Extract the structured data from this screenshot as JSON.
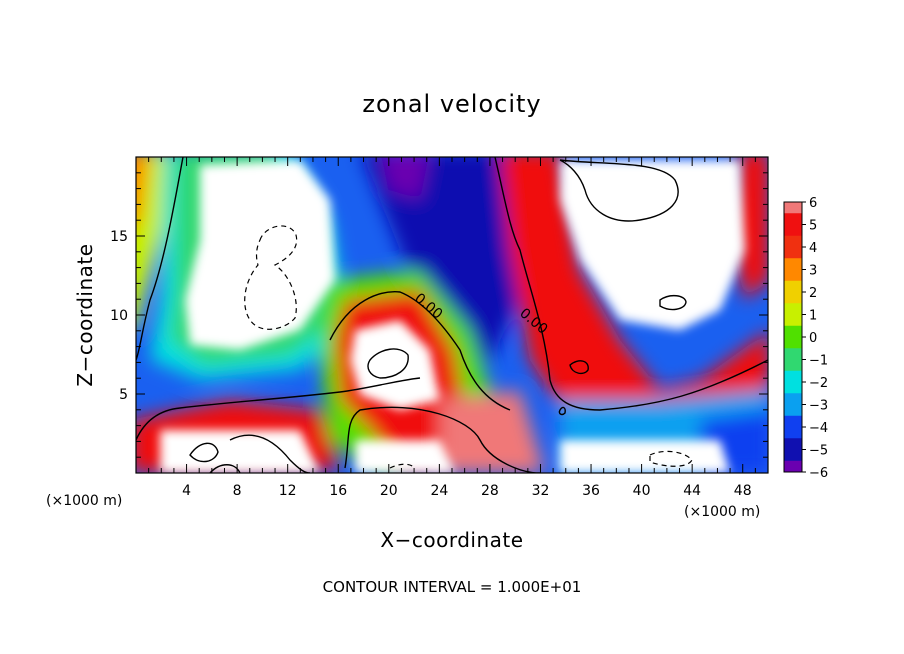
{
  "chart_data": {
    "type": "heatmap",
    "title": "zonal velocity",
    "xlabel": "X−coordinate",
    "ylabel": "Z−coordinate",
    "x_unit": "(×1000 m)",
    "z_unit": "(×1000 m)",
    "xlim": [
      0,
      50
    ],
    "ylim": [
      0,
      20
    ],
    "x_ticks": [
      4,
      8,
      12,
      16,
      20,
      24,
      28,
      32,
      36,
      40,
      44,
      48
    ],
    "x_tick_labels": [
      "4",
      "8",
      "12",
      "16",
      "20",
      "24",
      "28",
      "32",
      "36",
      "40",
      "44",
      "48"
    ],
    "y_ticks": [
      5,
      10,
      15
    ],
    "y_tick_labels": [
      "5",
      "10",
      "15"
    ],
    "colorbar": {
      "min": -6,
      "max": 6,
      "levels": [
        6,
        5,
        4,
        3,
        2,
        1,
        0,
        -1,
        -2,
        -3,
        -4,
        -5,
        -6
      ],
      "labels": [
        "6",
        "5",
        "4",
        "3",
        "2",
        "1",
        "0",
        "−1",
        "−2",
        "−3",
        "−4",
        "−5",
        "−6"
      ],
      "colors": [
        "#f07878",
        "#f01010",
        "#f03010",
        "#ff8800",
        "#f0d000",
        "#c8f000",
        "#50e000",
        "#30d870",
        "#00e0e0",
        "#0aa0f0",
        "#1040f0",
        "#1010b0",
        "#6a00b0"
      ],
      "above_range_color": "#ffffff"
    },
    "contour_labels": [
      "0.00",
      "0.00"
    ],
    "contour_label_positions": [
      [
        22,
        10.5
      ],
      [
        31,
        9.5
      ]
    ],
    "footer": "CONTOUR INTERVAL = 1.000E+01"
  }
}
